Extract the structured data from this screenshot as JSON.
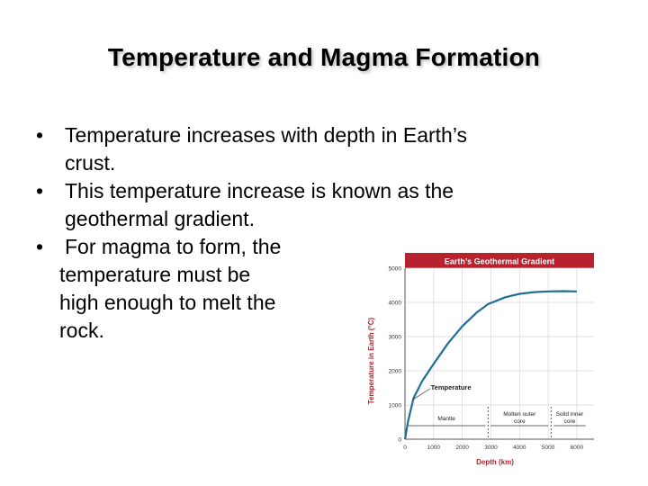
{
  "slide": {
    "title": "Temperature and Magma Formation",
    "bullets": [
      {
        "line1": "Temperature increases with depth in Earth’s",
        "line2": "crust."
      },
      {
        "line1": "This temperature increase is known as the",
        "line2": "geothermal gradient."
      },
      {
        "lines": [
          "For magma to form, the",
          "temperature must be",
          "high enough to melt the",
          "rock."
        ]
      }
    ]
  },
  "chart_data": {
    "type": "line",
    "title": "Earth’s Geothermal Gradient",
    "title_bar_color": "#b7222e",
    "line_color": "#1f6f95",
    "xlabel": "Depth (km)",
    "ylabel": "Temperature in Earth (°C)",
    "xlim": [
      0,
      6600
    ],
    "ylim": [
      0,
      5000
    ],
    "x_ticks": [
      0,
      1000,
      2000,
      3000,
      4000,
      5000,
      6000
    ],
    "y_ticks": [
      0,
      1000,
      2000,
      3000,
      4000,
      5000
    ],
    "series": [
      {
        "name": "Temperature",
        "x": [
          0,
          100,
          300,
          600,
          1000,
          1500,
          2000,
          2500,
          2900,
          3500,
          4000,
          4500,
          5000,
          5500,
          6000
        ],
        "y": [
          0,
          500,
          1200,
          1700,
          2200,
          2800,
          3300,
          3700,
          3950,
          4150,
          4250,
          4300,
          4320,
          4330,
          4320
        ]
      }
    ],
    "annotations": {
      "curve_label": "Temperature"
    },
    "regions": [
      {
        "lines": [
          "Mantle"
        ],
        "from": 0,
        "to": 2900
      },
      {
        "lines": [
          "Molten outer",
          "core"
        ],
        "from": 2900,
        "to": 5100
      },
      {
        "lines": [
          "Solid inner",
          "core"
        ],
        "from": 5100,
        "to": 6400
      }
    ]
  }
}
